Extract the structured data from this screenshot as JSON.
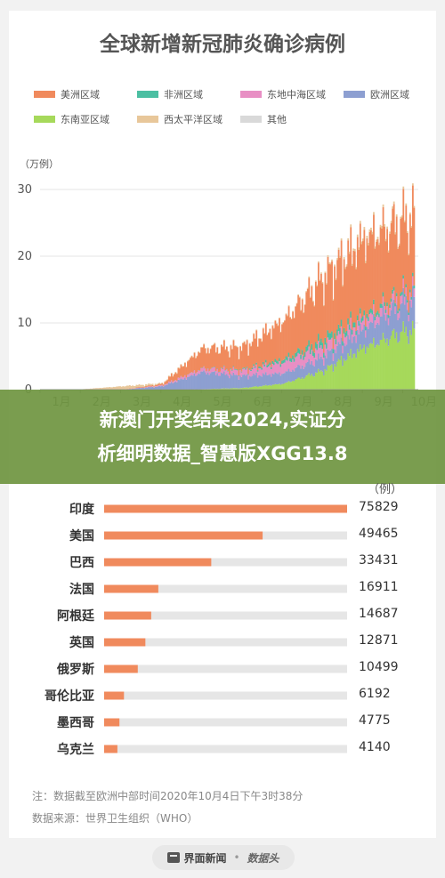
{
  "header": {
    "title": "全球新增新冠肺炎确诊病例"
  },
  "legend": {
    "items": [
      {
        "label": "美洲区域",
        "color": "#f08a5d"
      },
      {
        "label": "非洲区域",
        "color": "#4bbfa2"
      },
      {
        "label": "东地中海区域",
        "color": "#e88fc4"
      },
      {
        "label": "欧洲区域",
        "color": "#8d9fd1"
      },
      {
        "label": "东南亚区域",
        "color": "#a6d95b"
      },
      {
        "label": "西太平洋区域",
        "color": "#e8c79a"
      },
      {
        "label": "其他",
        "color": "#d9d9d9"
      }
    ]
  },
  "overlay": {
    "line1": "新澳门开奖结果2024,实证分",
    "line2": "析细明数据_智慧版XGG13.8"
  },
  "chart_data": [
    {
      "type": "area",
      "title": "全球新增新冠肺炎确诊病例",
      "unit_label": "（万例）",
      "x_tick_labels": [
        "1月",
        "2月",
        "3月",
        "4月",
        "5月",
        "6月",
        "7月",
        "8月",
        "9月",
        "10月"
      ],
      "ylim": [
        0,
        32
      ],
      "y_ticks": [
        0,
        10,
        20,
        30
      ],
      "grid": true,
      "legend_position": "top",
      "stack_order": [
        "东南亚区域",
        "欧洲区域",
        "东地中海区域",
        "非洲区域",
        "美洲区域",
        "西太平洋区域",
        "其他"
      ],
      "series": [
        {
          "name": "东南亚区域",
          "values_by_month_start": [
            0,
            0,
            0,
            0.02,
            0.08,
            0.25,
            0.9,
            2.9,
            6.4,
            8.8,
            9.3
          ]
        },
        {
          "name": "欧洲区域",
          "values_by_month_start": [
            0,
            0,
            0,
            0.5,
            2.6,
            1.8,
            1.6,
            2.0,
            2.9,
            4.3,
            5.6
          ]
        },
        {
          "name": "东地中海区域",
          "values_by_month_start": [
            0,
            0,
            0,
            0.12,
            0.5,
            0.8,
            1.6,
            1.6,
            1.3,
            1.2,
            1.4
          ]
        },
        {
          "name": "非洲区域",
          "values_by_month_start": [
            0,
            0,
            0,
            0.01,
            0.04,
            0.12,
            0.5,
            1.0,
            0.7,
            0.45,
            0.4
          ]
        },
        {
          "name": "美洲区域",
          "values_by_month_start": [
            0,
            0,
            0,
            0.2,
            3.0,
            3.4,
            5.8,
            9.5,
            11.5,
            11.0,
            12.5
          ]
        },
        {
          "name": "西太平洋区域",
          "values_by_month_start": [
            0,
            0.05,
            0.5,
            0.1,
            0.1,
            0.1,
            0.1,
            0.2,
            0.4,
            0.3,
            0.2
          ]
        },
        {
          "name": "其他",
          "values_by_month_start": [
            0,
            0,
            0,
            0,
            0,
            0,
            0,
            0,
            0,
            0,
            0
          ]
        }
      ]
    },
    {
      "type": "bar",
      "orientation": "horizontal",
      "unit_label": "（例）",
      "categories": [
        "印度",
        "美国",
        "巴西",
        "法国",
        "阿根廷",
        "英国",
        "俄罗斯",
        "哥伦比亚",
        "墨西哥",
        "乌克兰"
      ],
      "values": [
        75829,
        49465,
        33431,
        16911,
        14687,
        12871,
        10499,
        6192,
        4775,
        4140
      ],
      "value_labels": [
        "75829",
        "49465",
        "33431",
        "16911",
        "14687",
        "12871",
        "10499",
        "6192",
        "4775",
        "4140"
      ],
      "color": "#f08a5d",
      "track_color": "#e6e6e6",
      "xlim": [
        0,
        75829
      ]
    }
  ],
  "notes": {
    "note": "注：数据截至欧洲中部时间2020年10月4日下午3时38分",
    "source": "数据来源：世界卫生组织（WHO）"
  },
  "footer": {
    "publisher": "界面新闻",
    "separator": "•",
    "brand": "数据头"
  },
  "icons": {
    "footer_icon": "newspaper-icon"
  }
}
